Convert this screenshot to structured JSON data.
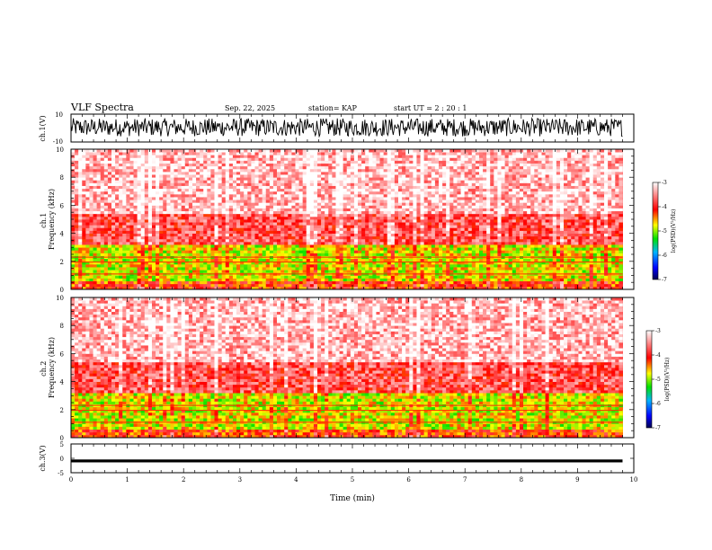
{
  "header": {
    "title": "VLF Spectra",
    "date": "Sep. 22, 2025",
    "station": "station= KAP",
    "start": "start  UT =   2 : 20 : 1"
  },
  "chart_data": [
    {
      "type": "line",
      "name": "ch1-waveform",
      "ylabel": "ch.1(V)",
      "ylim": [
        -10,
        10
      ],
      "yticks": [
        "10",
        "-10"
      ],
      "xlim": [
        0,
        10
      ],
      "data_end_min": 9.8,
      "amplitude_range": [
        -6,
        7
      ],
      "color": "#000000"
    },
    {
      "type": "heatmap",
      "name": "ch1-spectrogram",
      "ylabel": "ch.1\nFrequency (kHz)",
      "ylim": [
        0,
        10
      ],
      "yticks": [
        "0",
        "2",
        "4",
        "6",
        "8",
        "10"
      ],
      "xlim": [
        0,
        10
      ],
      "data_end_min": 9.8,
      "colorbar": {
        "label": "log(PSD)(V²/Hz)",
        "ticks": [
          "-3",
          "-4",
          "-5",
          "-6",
          "-7"
        ],
        "range": [
          -7,
          -3
        ]
      },
      "dominant_levels": [
        {
          "band_khz": [
            0,
            0.6
          ],
          "log_psd": -4.2
        },
        {
          "band_khz": [
            0.6,
            3.2
          ],
          "log_psd": -4.8
        },
        {
          "band_khz": [
            3.2,
            5.5
          ],
          "log_psd": -3.8
        },
        {
          "band_khz": [
            5.5,
            10
          ],
          "log_psd": -3.3
        }
      ],
      "lines_khz": [
        1.1,
        1.95,
        2.3
      ]
    },
    {
      "type": "heatmap",
      "name": "ch2-spectrogram",
      "ylabel": "ch.2\nFrequency (kHz)",
      "ylim": [
        0,
        10
      ],
      "yticks": [
        "0",
        "2",
        "4",
        "6",
        "8",
        "10"
      ],
      "xlim": [
        0,
        10
      ],
      "data_end_min": 9.8,
      "colorbar": {
        "label": "log(PSD)(V²/Hz)",
        "ticks": [
          "-3",
          "-4",
          "-5",
          "-6",
          "-7"
        ],
        "range": [
          -7,
          -3
        ]
      },
      "dominant_levels": [
        {
          "band_khz": [
            0,
            0.6
          ],
          "log_psd": -4.2
        },
        {
          "band_khz": [
            0.6,
            3.2
          ],
          "log_psd": -4.8
        },
        {
          "band_khz": [
            3.2,
            5.5
          ],
          "log_psd": -3.8
        },
        {
          "band_khz": [
            5.5,
            10
          ],
          "log_psd": -3.3
        }
      ],
      "lines_khz": [
        1.1,
        1.95,
        2.3
      ]
    },
    {
      "type": "line",
      "name": "ch3-waveform",
      "ylabel": "ch.3(V)",
      "ylim": [
        -5,
        5
      ],
      "yticks": [
        "5",
        "0",
        "-5"
      ],
      "xlim": [
        0,
        10
      ],
      "data_end_min": 9.8,
      "amplitude_range": [
        -1.4,
        -0.4
      ],
      "color": "#000000"
    }
  ],
  "x_axis": {
    "label": "Time (min)",
    "ticks": [
      "0",
      "1",
      "2",
      "3",
      "4",
      "5",
      "6",
      "7",
      "8",
      "9",
      "10"
    ]
  }
}
